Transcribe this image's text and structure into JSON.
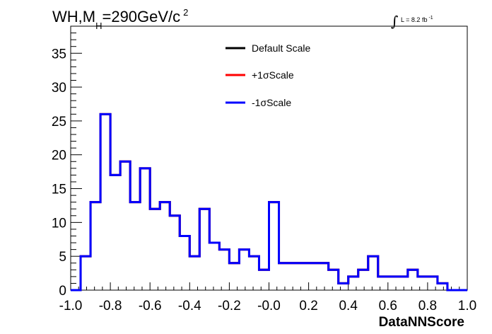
{
  "chart_data": {
    "type": "line",
    "title": {
      "prefix": "WH,M",
      "subscript": "H",
      "value": "=290GeV/c",
      "superscript": "2"
    },
    "lumi": {
      "integral": "∫",
      "text": "L = 8.2 fb",
      "superscript": "-1"
    },
    "xlabel": "DataNNScore",
    "ylabel": "",
    "xlim": [
      -1.0,
      1.0
    ],
    "ylim": [
      0,
      39
    ],
    "x_ticks": [
      -1.0,
      -0.8,
      -0.6,
      -0.4,
      -0.2,
      0.0,
      0.2,
      0.4,
      0.6,
      0.8,
      1.0
    ],
    "x_tick_labels": [
      "-1.0",
      "-0.8",
      "-0.6",
      "-0.4",
      "-0.2",
      "-0.0",
      "0.2",
      "0.4",
      "0.6",
      "0.8",
      "1.0"
    ],
    "y_ticks": [
      0,
      5,
      10,
      15,
      20,
      25,
      30,
      35
    ],
    "y_tick_labels": [
      "0",
      "5",
      "10",
      "15",
      "20",
      "25",
      "30",
      "35"
    ],
    "bin_edges": [
      -1.0,
      -0.95,
      -0.9,
      -0.85,
      -0.8,
      -0.75,
      -0.7,
      -0.65,
      -0.6,
      -0.55,
      -0.5,
      -0.45,
      -0.4,
      -0.35,
      -0.3,
      -0.25,
      -0.2,
      -0.15,
      -0.1,
      -0.05,
      0.0,
      0.05,
      0.1,
      0.15,
      0.2,
      0.25,
      0.3,
      0.35,
      0.4,
      0.45,
      0.5,
      0.55,
      0.6,
      0.65,
      0.7,
      0.75,
      0.8,
      0.85,
      0.9,
      0.95,
      1.0
    ],
    "series": [
      {
        "name": "Default Scale",
        "color": "#000000",
        "values": [
          0,
          5,
          13,
          26,
          17,
          19,
          13,
          18,
          12,
          13,
          11,
          8,
          5,
          12,
          7,
          6,
          4,
          6,
          5,
          3,
          13,
          4,
          4,
          4,
          4,
          4,
          3,
          1,
          2,
          3,
          5,
          2,
          2,
          2,
          3,
          2,
          2,
          1,
          0,
          0
        ]
      },
      {
        "name": "+1σScale",
        "color": "#ff0000",
        "values": [
          0,
          5,
          13,
          26,
          17,
          19,
          13,
          18,
          12,
          13,
          11,
          8,
          5,
          12,
          7,
          6,
          4,
          6,
          5,
          3,
          13,
          4,
          4,
          4,
          4,
          4,
          3,
          1,
          2,
          3,
          5,
          2,
          2,
          2,
          3,
          2,
          2,
          1,
          0,
          0
        ]
      },
      {
        "name": "-1σScale",
        "color": "#0000ff",
        "values": [
          0,
          5,
          13,
          26,
          17,
          19,
          13,
          18,
          12,
          13,
          11,
          8,
          5,
          12,
          7,
          6,
          4,
          6,
          5,
          3,
          13,
          4,
          4,
          4,
          4,
          4,
          3,
          1,
          2,
          3,
          5,
          2,
          2,
          2,
          3,
          2,
          2,
          1,
          0,
          0
        ]
      }
    ],
    "legend_position": "top-center",
    "grid": false
  }
}
